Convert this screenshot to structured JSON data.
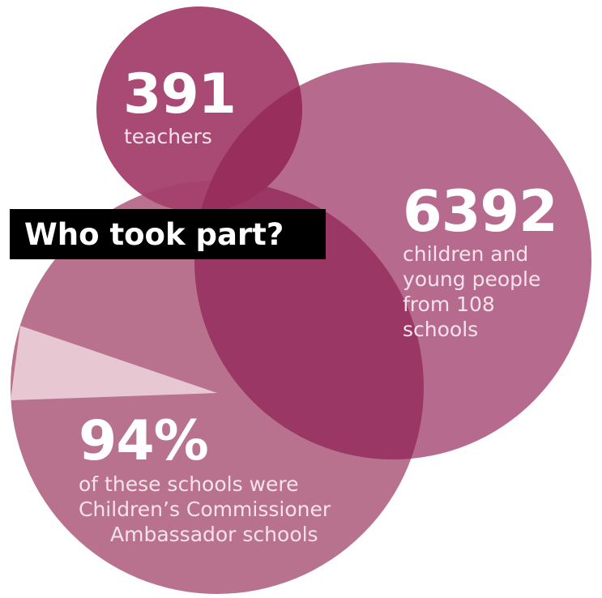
{
  "title": "Who took part?",
  "teachers": {
    "number": "391",
    "label": "teachers"
  },
  "children": {
    "number": "6392",
    "lines": [
      "children and",
      "young people",
      "from 108",
      "schools"
    ]
  },
  "ambassador": {
    "number": "94%",
    "lines": [
      "of these schools were",
      "Children’s Commissioner",
      "Ambassador schools"
    ]
  },
  "chart_data": {
    "type": "pie",
    "slices": [
      {
        "name": "",
        "value": 94
      },
      {
        "name": "",
        "value": 6
      }
    ]
  },
  "colors": {
    "pie_main": "#b8728d",
    "pie_slice": "#e7c7d2",
    "children_circle": "#b4668a",
    "teachers_circle": "#a43f6c",
    "overlap": "#9a3765",
    "title_bg": "#000000"
  }
}
